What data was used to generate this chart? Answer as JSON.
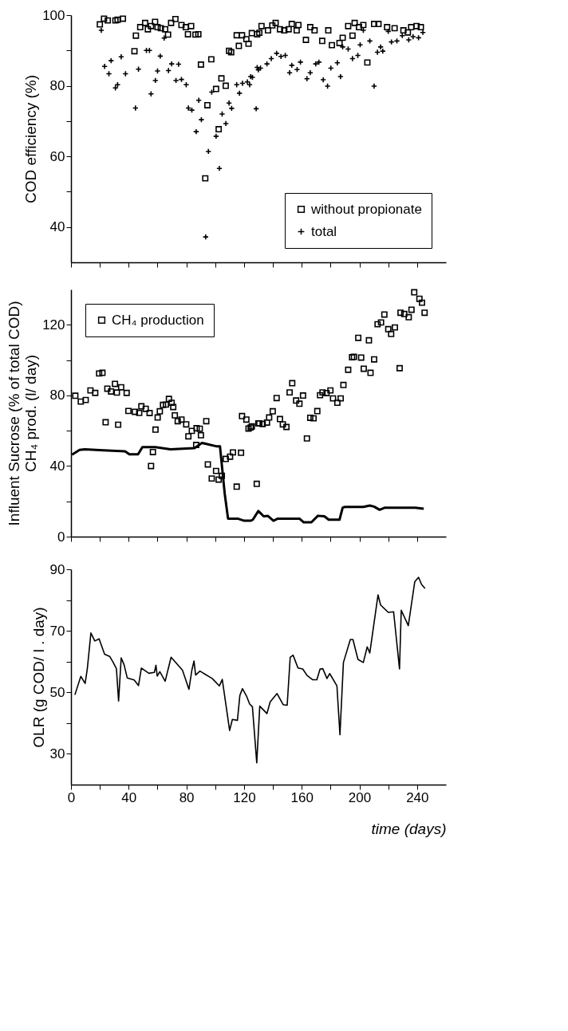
{
  "chart_data": [
    {
      "type": "scatter",
      "ylabel": "COD efficiency (%)",
      "xlim": [
        0,
        260
      ],
      "ylim": [
        30,
        100
      ],
      "xticks": [
        0,
        {
          "value": 20,
          "label": null
        },
        40,
        {
          "value": 60,
          "label": null
        },
        80,
        {
          "value": 100,
          "label": null
        },
        120,
        {
          "value": 140,
          "label": null
        },
        160,
        {
          "value": 180,
          "label": null
        },
        200,
        {
          "value": 220,
          "label": null
        },
        240
      ],
      "yticks": [
        40,
        {
          "value": 50,
          "label": null
        },
        60,
        {
          "value": 70,
          "label": null
        },
        80,
        {
          "value": 90,
          "label": null
        },
        100
      ],
      "tick_labels": "y",
      "grid": false,
      "legend": "bottom right",
      "series": [
        {
          "name": "without propionate",
          "type": "scatter",
          "marker": "square",
          "color": "#000000",
          "x": [
            20,
            22.9,
            25.5,
            30.8,
            32.3,
            36,
            44,
            45,
            48,
            51.4,
            53.3,
            55.5,
            58.3,
            60,
            62.3,
            65.3,
            67.3,
            69.4,
            72.4,
            76.6,
            79.6,
            81.1,
            83.3,
            86.3,
            88.3,
            90.1,
            93.1,
            94.6,
            97.3,
            100.6,
            102.4,
            104.3,
            107.3,
            109.6,
            111.1,
            114.9,
            116.4,
            118.6,
            121.6,
            123.1,
            125.4,
            129.1,
            130.6,
            132.1,
            136.6,
            139.6,
            141.9,
            144.9,
            147.9,
            150.9,
            153.1,
            156.5,
            157.7,
            162.9,
            165.9,
            168.9,
            174.2,
            178.4,
            180.9,
            186.2,
            188.4,
            192.2,
            195.2,
            196.7,
            199.7,
            202.7,
            205.5,
            210.2,
            213.2,
            219.2,
            224.4,
            230.5,
            233.6,
            235.9,
            239.6,
            242.6
          ],
          "values": [
            97.4,
            99,
            98.5,
            98.5,
            98.7,
            99,
            89.8,
            94.2,
            96.6,
            97.8,
            96,
            96.9,
            98.1,
            96.6,
            96.3,
            96,
            94.5,
            97.8,
            98.9,
            97.2,
            96.6,
            94.6,
            96.9,
            94.5,
            94.6,
            86,
            53.8,
            74.5,
            87.5,
            79.1,
            67.7,
            82.1,
            80,
            89.9,
            89.5,
            94.3,
            91.3,
            94.3,
            93.2,
            91.9,
            94.9,
            94.6,
            95,
            96.9,
            95.7,
            97.1,
            97.8,
            96,
            95.7,
            96,
            97.5,
            95.7,
            97.2,
            93,
            96.6,
            95.7,
            92.7,
            95.7,
            91.5,
            92.1,
            93.6,
            96.9,
            94.2,
            97.8,
            96.6,
            97.2,
            86.6,
            97.5,
            97.5,
            96.6,
            96.3,
            95.7,
            95.1,
            96.6,
            96.9,
            96.6
          ]
        },
        {
          "name": "total",
          "type": "scatter",
          "marker": "cross",
          "color": "#000000",
          "x": [
            21,
            23.3,
            26.3,
            27.8,
            30.8,
            32.3,
            34.8,
            37.8,
            44.7,
            46.8,
            52.3,
            54.4,
            55.5,
            58.5,
            60,
            61.9,
            64.6,
            67.6,
            69.8,
            72.8,
            74.6,
            76.6,
            79.9,
            81.4,
            83.8,
            86.8,
            88.6,
            90.4,
            93.4,
            95.3,
            97.6,
            100.6,
            102.9,
            104.8,
            107.4,
            109.6,
            111.4,
            114.9,
            116.8,
            118.9,
            122.3,
            123.9,
            124.6,
            125.8,
            128.4,
            129.1,
            129.9,
            131.4,
            135.9,
            138.9,
            142.6,
            145.6,
            148.6,
            151.6,
            153.1,
            156.8,
            159.1,
            163.6,
            165.9,
            169.7,
            171.9,
            174.9,
            177.9,
            180.2,
            184.7,
            186.9,
            188.4,
            192.2,
            195.2,
            198.9,
            200.5,
            202.7,
            207.2,
            210.2,
            212.5,
            214.7,
            216.2,
            220,
            222.2,
            226,
            229.7,
            234.2,
            237.2,
            241,
            244
          ],
          "values": [
            95.7,
            85.5,
            83.4,
            87.1,
            79.4,
            80.3,
            88.2,
            83.4,
            73.7,
            84.7,
            90,
            90,
            77.7,
            81.5,
            84.2,
            88.4,
            93.5,
            84.3,
            86.2,
            81.5,
            86.1,
            81.8,
            80.3,
            73.7,
            73.1,
            67,
            75.9,
            70.4,
            37.2,
            61.4,
            78.2,
            65.7,
            56.6,
            72,
            69.3,
            75.1,
            73.6,
            80.3,
            77.9,
            80.7,
            81.1,
            80.3,
            82.6,
            82.4,
            73.5,
            85.2,
            84.5,
            85,
            86.2,
            87.7,
            89.2,
            88.3,
            88.6,
            83.7,
            85.8,
            84.6,
            86.7,
            82,
            83.7,
            86.2,
            86.7,
            81.7,
            79.9,
            85,
            86.5,
            82.6,
            91,
            90.4,
            87.7,
            88.6,
            91.6,
            95.7,
            92.7,
            79.9,
            89.5,
            91,
            89.8,
            95.4,
            92.4,
            92.7,
            94.2,
            93,
            93.9,
            93.6,
            95.1
          ]
        }
      ]
    },
    {
      "type": "scatter",
      "ylabel": "Influent Sucrose (% of total COD)\nCH₄ prod. (l/ day)",
      "xlim": [
        0,
        260
      ],
      "ylim": [
        0,
        140
      ],
      "xticks": [
        0,
        {
          "value": 20,
          "label": null
        },
        40,
        {
          "value": 60,
          "label": null
        },
        80,
        {
          "value": 100,
          "label": null
        },
        120,
        {
          "value": 140,
          "label": null
        },
        160,
        {
          "value": 180,
          "label": null
        },
        200,
        {
          "value": 220,
          "label": null
        },
        240
      ],
      "yticks": [
        0,
        {
          "value": 20,
          "label": null
        },
        40,
        {
          "value": 60,
          "label": null
        },
        80,
        {
          "value": 100,
          "label": null
        },
        120
      ],
      "tick_labels": "y",
      "grid": false,
      "legend": "top left",
      "series": [
        {
          "name": "CH₄ production",
          "type": "scatter",
          "marker": "square",
          "color": "#000000",
          "x": [
            3,
            6.8,
            10.2,
            13.5,
            16.8,
            19.5,
            21.8,
            24,
            25.2,
            27.8,
            30.5,
            31.8,
            32.7,
            34.8,
            38.6,
            39.8,
            44.3,
            47.3,
            48.8,
            51.8,
            54.5,
            55.5,
            56.8,
            58.6,
            60.1,
            61.6,
            63.8,
            65.8,
            67.9,
            69.8,
            70.9,
            72,
            74,
            76.6,
            79.9,
            81.4,
            83.8,
            86.8,
            87.1,
            89.3,
            90.1,
            93.8,
            94.9,
            97.6,
            100.6,
            102.4,
            104.6,
            107.3,
            110.3,
            112.3,
            114.9,
            117.9,
            118.6,
            121.6,
            123.1,
            124.6,
            125.4,
            128.8,
            129.9,
            130.6,
            132.9,
            135.9,
            137.4,
            139.9,
            142.6,
            144.9,
            146.9,
            149.4,
            151.6,
            153.4,
            156.1,
            158.4,
            160.9,
            163.6,
            165.9,
            168.2,
            170.8,
            172.7,
            174.4,
            177.2,
            179.9,
            181.7,
            184.7,
            187,
            188.9,
            192.2,
            194.9,
            196.2,
            199.2,
            201.2,
            203,
            206.6,
            207.7,
            210.2,
            212.6,
            215,
            217.3,
            220,
            222,
            224.6,
            227.9,
            228.5,
            231.1,
            234.2,
            236.1,
            238,
            241.6,
            243.4,
            245.2
          ],
          "values": [
            79.8,
            76.5,
            77.4,
            82.8,
            81.4,
            92.4,
            92.8,
            64.8,
            83.8,
            82.2,
            86.5,
            81.6,
            63.4,
            84.6,
            81.4,
            71.2,
            70.7,
            70.1,
            73.8,
            72.4,
            70,
            40,
            47.9,
            60.6,
            67.5,
            71,
            74.6,
            74.8,
            78,
            75.8,
            73.4,
            68.7,
            65.4,
            66.3,
            63.6,
            56.8,
            59.9,
            51.9,
            61.4,
            61.1,
            57.4,
            65.4,
            40.9,
            32.9,
            37.2,
            32.3,
            34.4,
            44,
            45.3,
            47.7,
            28.3,
            47.5,
            68.3,
            66.3,
            61.2,
            61.8,
            62.4,
            29.9,
            64.2,
            64.2,
            63.8,
            64.6,
            67.5,
            71,
            78.5,
            66.6,
            63.6,
            62.1,
            81.7,
            86.9,
            77.1,
            75.3,
            79.9,
            55.6,
            67.3,
            67,
            71.1,
            80.1,
            81.7,
            81.3,
            82.8,
            78.3,
            75.8,
            78.3,
            85.9,
            94.5,
            101.6,
            101.8,
            112.6,
            101.4,
            95.1,
            111.2,
            92.8,
            100.4,
            120.3,
            121.3,
            125.8,
            117.5,
            114.8,
            118.5,
            95.4,
            126.8,
            126.1,
            124.3,
            128.5,
            138.4,
            134.7,
            132.5,
            126.8
          ]
        },
        {
          "type": "line",
          "color": "#000000",
          "x": [
            0.7,
            5.9,
            9.6,
            22.5,
            37.5,
            40.5,
            46.5,
            49.5,
            58.5,
            69,
            85.6,
            90.8,
            100.6,
            103.3,
            106.6,
            108.9,
            115.6,
            120.1,
            124.6,
            126.1,
            129.9,
            133.6,
            136.6,
            140.4,
            143.4,
            158.4,
            161.4,
            166.7,
            171.2,
            175.7,
            178.7,
            186.2,
            188.4,
            189.9,
            202.7,
            207.2,
            210.2,
            214,
            217.7,
            238.7,
            244.6
          ],
          "values": [
            46.4,
            49.1,
            49.5,
            48.9,
            48.3,
            46.6,
            46.6,
            50.7,
            50.7,
            49.5,
            50.1,
            53.1,
            51.2,
            51.2,
            24.3,
            10.2,
            10.2,
            9,
            9,
            9.6,
            14.5,
            11.5,
            11.7,
            9,
            10.2,
            10.2,
            8.1,
            8.1,
            11.8,
            11.5,
            9.6,
            9.6,
            16.4,
            16.8,
            16.8,
            17.6,
            17,
            15.2,
            16.4,
            16.4,
            15.8
          ]
        }
      ]
    },
    {
      "type": "line",
      "ylabel": "OLR (g COD/ l . day)",
      "xlabel": "time (days)",
      "xlim": [
        0,
        260
      ],
      "ylim": [
        20,
        90
      ],
      "xticks": [
        0,
        {
          "value": 20,
          "label": null
        },
        40,
        {
          "value": 60,
          "label": null
        },
        80,
        {
          "value": 100,
          "label": null
        },
        120,
        {
          "value": 140,
          "label": null
        },
        160,
        {
          "value": 180,
          "label": null
        },
        200,
        {
          "value": 220,
          "label": null
        },
        240
      ],
      "yticks": [
        30,
        {
          "value": 40,
          "label": null
        },
        50,
        {
          "value": 60,
          "label": null
        },
        70,
        {
          "value": 80,
          "label": null
        },
        90
      ],
      "grid": false,
      "series": [
        {
          "type": "line",
          "color": "#000000",
          "x": [
            2.7,
            6.8,
            9.8,
            11.3,
            13.8,
            16.5,
            19.5,
            23.3,
            26.8,
            29.3,
            31.5,
            33,
            34.8,
            36.8,
            39,
            43.8,
            46.8,
            48.8,
            54,
            57.8,
            58.9,
            59.8,
            61.6,
            65.3,
            69.4,
            77.3,
            81.8,
            83.8,
            85.3,
            86.4,
            89.4,
            97.9,
            102.9,
            104.9,
            110,
            111.9,
            115.4,
            117.1,
            118.9,
            121.9,
            123.9,
            125.8,
            128.8,
            130.9,
            135.9,
            138.1,
            142.9,
            147.1,
            149.9,
            152,
            154,
            157.4,
            160.7,
            163.7,
            167.5,
            170.5,
            172.7,
            174.6,
            177.5,
            179.4,
            184.4,
            186.5,
            188.9,
            193.7,
            195.5,
            199,
            202.7,
            205.4,
            207.2,
            212.9,
            214.7,
            220,
            223.7,
            227.8,
            229,
            233.9,
            238.4,
            241,
            243.2,
            245.5
          ],
          "values": [
            49.2,
            55.2,
            52.9,
            57.6,
            69.3,
            66.7,
            67.4,
            62.4,
            61.7,
            59.7,
            57.7,
            47.2,
            61.2,
            59,
            54.7,
            54,
            52.2,
            57.9,
            56.2,
            56.5,
            58.8,
            55.3,
            56.7,
            53.6,
            61.4,
            57.2,
            51,
            57.2,
            60.2,
            55.6,
            56.9,
            54.5,
            52.1,
            54.2,
            37.6,
            41.2,
            40.9,
            49,
            51.2,
            48.6,
            46.2,
            45.3,
            27.1,
            45.5,
            43.1,
            46.9,
            49.6,
            46,
            45.8,
            61.4,
            62.1,
            57.9,
            57.6,
            55.5,
            54.1,
            54.1,
            57.6,
            57.7,
            54.5,
            56.1,
            52.1,
            36.2,
            59.7,
            67.2,
            67.2,
            60.7,
            59.7,
            64.8,
            62.8,
            81.7,
            78.4,
            76,
            76.2,
            57.6,
            76.7,
            71.7,
            86,
            87.4,
            85,
            83.8
          ]
        }
      ]
    }
  ]
}
